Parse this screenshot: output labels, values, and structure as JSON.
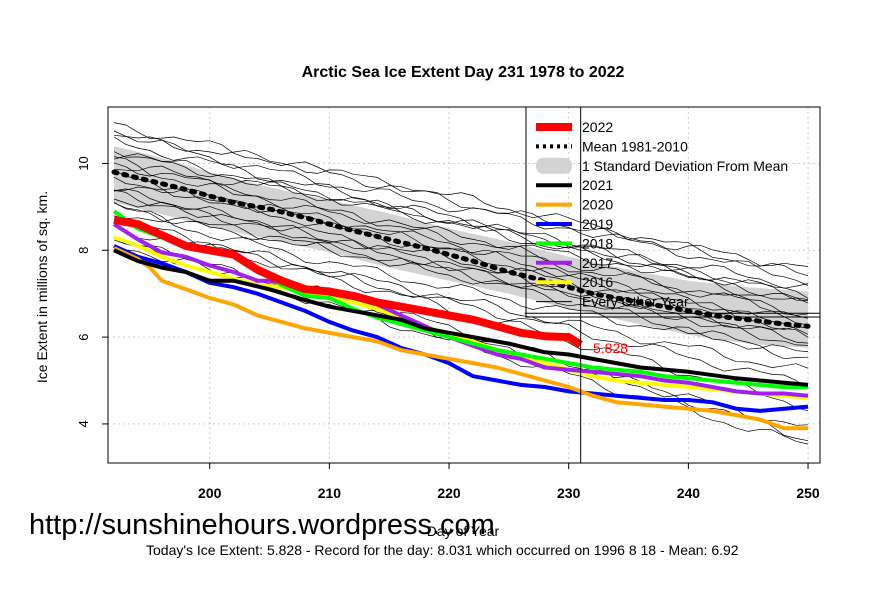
{
  "chart_data": {
    "type": "line",
    "title": "Arctic Sea Ice Extent Day 231 1978 to 2022",
    "xlabel": "Day of Year",
    "ylabel": "Ice Extent in millions of sq. km.",
    "xlim": [
      191.5,
      251
    ],
    "ylim": [
      3.1,
      11.3
    ],
    "xticks": [
      200,
      210,
      220,
      230,
      240,
      250
    ],
    "yticks": [
      4,
      6,
      8,
      10
    ],
    "grid": true,
    "legend_position": "top-right",
    "legend": [
      {
        "label": "2022",
        "color": "#ff0000",
        "style": "thick"
      },
      {
        "label": "Mean 1981-2010",
        "color": "#000000",
        "style": "dotted"
      },
      {
        "label": "1 Standard Deviation From Mean",
        "color": "#d3d3d3",
        "style": "band"
      },
      {
        "label": "2021",
        "color": "#000000",
        "style": "solid"
      },
      {
        "label": "2020",
        "color": "#ffa500",
        "style": "solid"
      },
      {
        "label": "2019",
        "color": "#0000ff",
        "style": "solid"
      },
      {
        "label": "2018",
        "color": "#00ff00",
        "style": "solid"
      },
      {
        "label": "2017",
        "color": "#a020f0",
        "style": "solid"
      },
      {
        "label": "2016",
        "color": "#ffff00",
        "style": "solid"
      },
      {
        "label": "Every Other Year",
        "color": "#000000",
        "style": "thin"
      }
    ],
    "crosshair": {
      "x": 231,
      "y": 6.55
    },
    "current_value_label": "5.828",
    "current_point": {
      "x": 231,
      "y": 5.828
    },
    "series": [
      {
        "name": "2022",
        "color": "#ff0000",
        "width": 8,
        "x": [
          192,
          194,
          196,
          198,
          200,
          202,
          204,
          206,
          208,
          210,
          212,
          214,
          216,
          218,
          220,
          222,
          224,
          226,
          228,
          230,
          231
        ],
        "y": [
          8.7,
          8.6,
          8.35,
          8.1,
          8.0,
          7.9,
          7.55,
          7.3,
          7.1,
          7.05,
          6.95,
          6.8,
          6.7,
          6.6,
          6.5,
          6.4,
          6.25,
          6.1,
          6.02,
          6.0,
          5.828
        ]
      },
      {
        "name": "Mean 1981-2010",
        "color": "#000000",
        "width": 5,
        "dash": "3,7",
        "x": [
          192,
          195,
          198,
          200,
          202,
          205,
          208,
          210,
          212,
          215,
          218,
          220,
          222,
          225,
          228,
          230,
          232,
          235,
          238,
          240,
          242,
          245,
          248,
          250
        ],
        "y": [
          9.8,
          9.6,
          9.4,
          9.25,
          9.1,
          8.95,
          8.75,
          8.6,
          8.45,
          8.25,
          8.05,
          7.9,
          7.75,
          7.5,
          7.3,
          7.15,
          7.0,
          6.85,
          6.7,
          6.6,
          6.5,
          6.4,
          6.3,
          6.25
        ]
      },
      {
        "name": "2021",
        "color": "#000000",
        "width": 4,
        "x": [
          192,
          194,
          196,
          198,
          200,
          202,
          205,
          208,
          210,
          213,
          216,
          218,
          220,
          222,
          225,
          228,
          230,
          233,
          236,
          240,
          244,
          248,
          250
        ],
        "y": [
          8.0,
          7.75,
          7.6,
          7.5,
          7.3,
          7.3,
          7.1,
          6.85,
          6.7,
          6.55,
          6.4,
          6.2,
          6.1,
          6.0,
          5.85,
          5.65,
          5.6,
          5.45,
          5.3,
          5.2,
          5.05,
          4.95,
          4.9
        ]
      },
      {
        "name": "2020",
        "color": "#ffa500",
        "width": 4,
        "x": [
          192,
          194,
          195,
          196,
          198,
          200,
          202,
          204,
          206,
          208,
          210,
          212,
          214,
          216,
          218,
          220,
          222,
          224,
          226,
          228,
          230,
          232,
          234,
          236,
          238,
          240,
          242,
          244,
          246,
          248,
          250
        ],
        "y": [
          8.05,
          7.8,
          7.6,
          7.3,
          7.1,
          6.9,
          6.75,
          6.5,
          6.35,
          6.2,
          6.1,
          6.0,
          5.9,
          5.7,
          5.6,
          5.5,
          5.4,
          5.3,
          5.15,
          5.0,
          4.85,
          4.65,
          4.5,
          4.45,
          4.4,
          4.35,
          4.3,
          4.2,
          4.1,
          3.9,
          3.9
        ]
      },
      {
        "name": "2019",
        "color": "#0000ff",
        "width": 4,
        "x": [
          192,
          194,
          196,
          198,
          200,
          202,
          204,
          206,
          208,
          210,
          212,
          214,
          216,
          218,
          220,
          222,
          224,
          226,
          228,
          230,
          232,
          234,
          236,
          238,
          240,
          242,
          244,
          246,
          248,
          250
        ],
        "y": [
          8.1,
          7.85,
          7.7,
          7.5,
          7.25,
          7.15,
          7.0,
          6.8,
          6.6,
          6.35,
          6.15,
          6.0,
          5.75,
          5.6,
          5.4,
          5.1,
          5.0,
          4.9,
          4.85,
          4.75,
          4.7,
          4.65,
          4.6,
          4.55,
          4.55,
          4.5,
          4.35,
          4.3,
          4.35,
          4.4
        ]
      },
      {
        "name": "2018",
        "color": "#00ff00",
        "width": 4,
        "x": [
          192,
          194,
          196,
          198,
          200,
          202,
          204,
          206,
          208,
          210,
          212,
          214,
          216,
          218,
          220,
          222,
          224,
          226,
          228,
          230,
          232,
          234,
          236,
          238,
          240,
          242,
          244,
          246,
          248,
          250
        ],
        "y": [
          8.9,
          8.5,
          8.3,
          8.1,
          8.05,
          7.9,
          7.6,
          7.2,
          6.95,
          6.9,
          6.65,
          6.45,
          6.3,
          6.15,
          6.0,
          5.85,
          5.7,
          5.6,
          5.5,
          5.4,
          5.3,
          5.25,
          5.2,
          5.1,
          5.05,
          5.0,
          4.95,
          4.9,
          4.85,
          4.85
        ]
      },
      {
        "name": "2017",
        "color": "#a020f0",
        "width": 4,
        "x": [
          192,
          194,
          196,
          198,
          200,
          202,
          204,
          206,
          208,
          210,
          212,
          214,
          216,
          218,
          220,
          222,
          224,
          226,
          228,
          230,
          232,
          234,
          236,
          238,
          240,
          242,
          244,
          246,
          248,
          250
        ],
        "y": [
          8.6,
          8.25,
          7.95,
          7.85,
          7.65,
          7.5,
          7.3,
          7.3,
          7.15,
          7.0,
          6.9,
          6.75,
          6.5,
          6.25,
          6.0,
          5.8,
          5.6,
          5.5,
          5.3,
          5.25,
          5.2,
          5.15,
          5.1,
          5.0,
          4.95,
          4.85,
          4.75,
          4.7,
          4.7,
          4.65
        ]
      },
      {
        "name": "2016",
        "color": "#ffff00",
        "width": 4,
        "x": [
          192,
          194,
          196,
          198,
          200,
          202,
          204,
          206,
          208,
          210,
          212,
          214,
          216,
          218,
          220,
          222,
          224,
          226,
          228,
          230,
          232,
          234,
          236,
          238,
          240,
          242,
          244,
          246,
          248,
          250
        ],
        "y": [
          8.3,
          8.1,
          7.85,
          7.65,
          7.5,
          7.35,
          7.2,
          7.15,
          7.0,
          6.95,
          6.8,
          6.65,
          6.45,
          6.25,
          6.05,
          5.9,
          5.7,
          5.55,
          5.4,
          5.25,
          5.1,
          5.0,
          4.95,
          4.9,
          4.85,
          4.8,
          4.75,
          4.7,
          4.65,
          4.6
        ]
      }
    ],
    "std_band": {
      "x": [
        192,
        195,
        200,
        205,
        210,
        215,
        220,
        225,
        230,
        235,
        240,
        245,
        250
      ],
      "upper": [
        10.4,
        10.2,
        9.8,
        9.45,
        9.15,
        8.85,
        8.5,
        8.2,
        7.85,
        7.55,
        7.3,
        7.15,
        7.05
      ],
      "lower": [
        9.1,
        8.9,
        8.55,
        8.25,
        7.95,
        7.6,
        7.3,
        7.0,
        6.65,
        6.35,
        6.05,
        5.85,
        5.75
      ]
    },
    "other_years": [
      {
        "start": 10.9,
        "end": 7.3,
        "shape": 1.0
      },
      {
        "start": 10.8,
        "end": 7.6,
        "shape": 0.8
      },
      {
        "start": 10.6,
        "end": 7.4,
        "shape": 1.2
      },
      {
        "start": 10.5,
        "end": 6.9,
        "shape": 1.0
      },
      {
        "start": 10.35,
        "end": 7.15,
        "shape": 0.9
      },
      {
        "start": 10.2,
        "end": 6.7,
        "shape": 1.1
      },
      {
        "start": 10.1,
        "end": 7.0,
        "shape": 0.8
      },
      {
        "start": 10.0,
        "end": 6.5,
        "shape": 1.0
      },
      {
        "start": 9.9,
        "end": 6.8,
        "shape": 1.3
      },
      {
        "start": 9.75,
        "end": 6.3,
        "shape": 0.9
      },
      {
        "start": 9.65,
        "end": 6.55,
        "shape": 1.0
      },
      {
        "start": 9.5,
        "end": 6.1,
        "shape": 1.2
      },
      {
        "start": 9.4,
        "end": 6.0,
        "shape": 0.9
      },
      {
        "start": 9.3,
        "end": 6.2,
        "shape": 1.0
      },
      {
        "start": 9.2,
        "end": 5.8,
        "shape": 1.1
      },
      {
        "start": 9.1,
        "end": 5.6,
        "shape": 0.8
      },
      {
        "start": 9.0,
        "end": 5.9,
        "shape": 1.0
      },
      {
        "start": 8.85,
        "end": 5.5,
        "shape": 1.2
      },
      {
        "start": 8.75,
        "end": 5.2,
        "shape": 0.9
      },
      {
        "start": 8.6,
        "end": 4.9,
        "shape": 1.0
      },
      {
        "start": 8.5,
        "end": 4.4,
        "shape": 1.1
      },
      {
        "start": 8.35,
        "end": 3.9,
        "shape": 0.9
      },
      {
        "start": 8.2,
        "end": 3.5,
        "shape": 1.0
      },
      {
        "start": 8.05,
        "end": 3.65,
        "shape": 1.2
      }
    ]
  },
  "url_text": "http://sunshinehours.wordpress.com",
  "footer_text": "Today's Ice Extent: 5.828  - Record for the day: 8.031 which occurred on 1996 8 18  - Mean: 6.92"
}
